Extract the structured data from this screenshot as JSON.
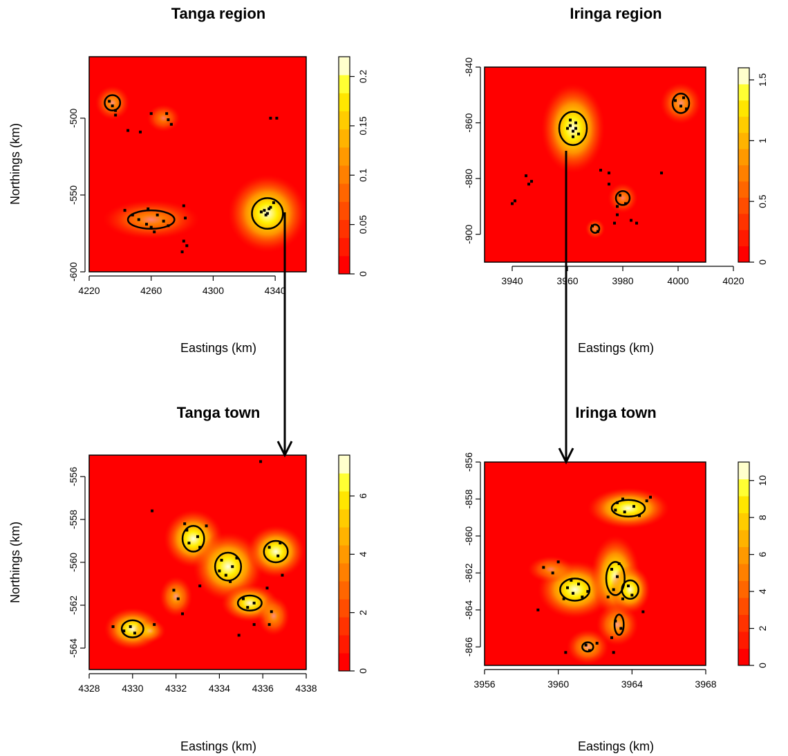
{
  "colors": {
    "low": "#ff0000",
    "mid": "#ffcc00",
    "high": "#ffffcc",
    "contour": "#000000",
    "event": "#000000"
  },
  "chart_data": [
    {
      "type": "heatmap",
      "title": "Tanga region",
      "xlabel": "Eastings (km)",
      "ylabel": "Northings (km)",
      "xlim": [
        4220,
        4360
      ],
      "ylim": [
        -600,
        -460
      ],
      "xticks": [
        4220,
        4260,
        4300,
        4340
      ],
      "yticks": [
        -600,
        -550,
        -500
      ],
      "colorbar": {
        "range": [
          0,
          0.22
        ],
        "ticks": [
          0,
          0.05,
          0.1,
          0.15,
          0.2
        ]
      },
      "hotspots": [
        {
          "x": 4235,
          "y": -490,
          "rx": 6,
          "ry": 6,
          "intensity": 0.06
        },
        {
          "x": 4260,
          "y": -566,
          "rx": 17,
          "ry": 7,
          "intensity": 0.05
        },
        {
          "x": 4268,
          "y": -500,
          "rx": 6,
          "ry": 5,
          "intensity": 0.03
        },
        {
          "x": 4335,
          "y": -562,
          "rx": 11,
          "ry": 11,
          "intensity": 0.22
        }
      ],
      "contours": [
        {
          "x": 4235,
          "y": -490,
          "rx": 5,
          "ry": 5
        },
        {
          "x": 4260,
          "y": -566,
          "rx": 15,
          "ry": 6
        },
        {
          "x": 4335,
          "y": -562,
          "rx": 10,
          "ry": 10
        }
      ],
      "events": [
        [
          4233,
          -489
        ],
        [
          4235,
          -492
        ],
        [
          4237,
          -495
        ],
        [
          4237,
          -498
        ],
        [
          4245,
          -508
        ],
        [
          4253,
          -509
        ],
        [
          4260,
          -497
        ],
        [
          4270,
          -497
        ],
        [
          4271,
          -501
        ],
        [
          4273,
          -504
        ],
        [
          4243,
          -560
        ],
        [
          4248,
          -563
        ],
        [
          4252,
          -566
        ],
        [
          4257,
          -569
        ],
        [
          4260,
          -571
        ],
        [
          4262,
          -574
        ],
        [
          4258,
          -559
        ],
        [
          4264,
          -563
        ],
        [
          4268,
          -567
        ],
        [
          4271,
          -570
        ],
        [
          4281,
          -557
        ],
        [
          4282,
          -565
        ],
        [
          4281,
          -580
        ],
        [
          4283,
          -583
        ],
        [
          4280,
          -587
        ],
        [
          4333,
          -560
        ],
        [
          4335,
          -562
        ],
        [
          4336,
          -559
        ],
        [
          4334,
          -563
        ],
        [
          4337,
          -558
        ],
        [
          4331,
          -561
        ],
        [
          4339,
          -555
        ],
        [
          4337,
          -500
        ],
        [
          4341,
          -500
        ]
      ]
    },
    {
      "type": "heatmap",
      "title": "Iringa region",
      "xlabel": "Eastings (km)",
      "ylabel": "",
      "xlim": [
        3930,
        4010
      ],
      "ylim": [
        -910,
        -840
      ],
      "xticks": [
        3940,
        3960,
        3980,
        4000,
        4020
      ],
      "yticks": [
        -900,
        -880,
        -860,
        -840
      ],
      "colorbar": {
        "range": [
          0,
          1.6
        ],
        "ticks": [
          0,
          0.5,
          1,
          1.5
        ]
      },
      "hotspots": [
        {
          "x": 3962,
          "y": -862,
          "rx": 5,
          "ry": 7,
          "intensity": 1.6
        },
        {
          "x": 4001,
          "y": -853,
          "rx": 4,
          "ry": 4,
          "intensity": 0.45
        },
        {
          "x": 3980,
          "y": -887,
          "rx": 3,
          "ry": 3,
          "intensity": 0.3
        },
        {
          "x": 3970,
          "y": -898,
          "rx": 2,
          "ry": 2,
          "intensity": 0.25
        }
      ],
      "contours": [
        {
          "x": 3962,
          "y": -862,
          "rx": 5,
          "ry": 6
        },
        {
          "x": 4001,
          "y": -853,
          "rx": 3,
          "ry": 3.5
        },
        {
          "x": 3980,
          "y": -887,
          "rx": 2.5,
          "ry": 2.5
        },
        {
          "x": 3970,
          "y": -898,
          "rx": 1.5,
          "ry": 1.5
        }
      ],
      "events": [
        [
          3961,
          -861
        ],
        [
          3962,
          -863
        ],
        [
          3963,
          -860
        ],
        [
          3960,
          -862
        ],
        [
          3964,
          -864
        ],
        [
          3962,
          -865
        ],
        [
          3961,
          -859
        ],
        [
          3963,
          -862
        ],
        [
          3999,
          -852
        ],
        [
          4001,
          -854
        ],
        [
          4002,
          -851
        ],
        [
          4003,
          -855
        ],
        [
          3940,
          -889
        ],
        [
          3941,
          -888
        ],
        [
          3945,
          -879
        ],
        [
          3946,
          -882
        ],
        [
          3947,
          -881
        ],
        [
          3972,
          -877
        ],
        [
          3975,
          -878
        ],
        [
          3975,
          -882
        ],
        [
          3978,
          -890
        ],
        [
          3978,
          -893
        ],
        [
          3977,
          -896
        ],
        [
          3979,
          -886
        ],
        [
          3981,
          -889
        ],
        [
          3969,
          -897
        ],
        [
          3971,
          -899
        ],
        [
          3983,
          -895
        ],
        [
          3994,
          -878
        ],
        [
          3985,
          -896
        ]
      ]
    },
    {
      "type": "heatmap",
      "title": "Tanga town",
      "xlabel": "Eastings (km)",
      "ylabel": "Northings (km)",
      "xlim": [
        4328,
        4338
      ],
      "ylim": [
        -565,
        -555
      ],
      "xticks": [
        4328,
        4330,
        4332,
        4334,
        4336,
        4338
      ],
      "yticks": [
        -564,
        -562,
        -560,
        -558,
        -556
      ],
      "colorbar": {
        "range": [
          0,
          7.4
        ],
        "ticks": [
          0,
          2,
          4,
          6
        ]
      },
      "hotspots": [
        {
          "x": 4332.8,
          "y": -558.9,
          "rx": 0.6,
          "ry": 0.6,
          "intensity": 7
        },
        {
          "x": 4334.4,
          "y": -560.2,
          "rx": 0.7,
          "ry": 0.7,
          "intensity": 7.4
        },
        {
          "x": 4336.6,
          "y": -559.5,
          "rx": 0.6,
          "ry": 0.55,
          "intensity": 6.5
        },
        {
          "x": 4335.4,
          "y": -561.9,
          "rx": 0.6,
          "ry": 0.4,
          "intensity": 6
        },
        {
          "x": 4330.0,
          "y": -563.1,
          "rx": 0.6,
          "ry": 0.45,
          "intensity": 6
        },
        {
          "x": 4332.0,
          "y": -561.6,
          "rx": 0.4,
          "ry": 0.5,
          "intensity": 2.5
        },
        {
          "x": 4336.5,
          "y": -562.5,
          "rx": 0.4,
          "ry": 0.5,
          "intensity": 2
        },
        {
          "x": 4330.8,
          "y": -563.2,
          "rx": 0.4,
          "ry": 0.3,
          "intensity": 1.5
        }
      ],
      "contours": [
        {
          "x": 4332.8,
          "y": -558.9,
          "rx": 0.5,
          "ry": 0.6
        },
        {
          "x": 4334.4,
          "y": -560.2,
          "rx": 0.6,
          "ry": 0.65
        },
        {
          "x": 4336.6,
          "y": -559.5,
          "rx": 0.55,
          "ry": 0.5
        },
        {
          "x": 4335.4,
          "y": -561.9,
          "rx": 0.55,
          "ry": 0.35
        },
        {
          "x": 4330.0,
          "y": -563.1,
          "rx": 0.5,
          "ry": 0.4
        }
      ],
      "events": [
        [
          4335.9,
          -555.3
        ],
        [
          4330.9,
          -557.6
        ],
        [
          4332.5,
          -558.5
        ],
        [
          4333.0,
          -558.8
        ],
        [
          4333.1,
          -559.3
        ],
        [
          4332.6,
          -559.1
        ],
        [
          4333.4,
          -558.3
        ],
        [
          4332.4,
          -558.2
        ],
        [
          4334.1,
          -559.9
        ],
        [
          4334.6,
          -560.2
        ],
        [
          4334.3,
          -560.6
        ],
        [
          4334.0,
          -560.4
        ],
        [
          4334.8,
          -559.8
        ],
        [
          4334.5,
          -560.9
        ],
        [
          4336.3,
          -559.3
        ],
        [
          4336.7,
          -559.7
        ],
        [
          4336.8,
          -559.1
        ],
        [
          4336.9,
          -560.6
        ],
        [
          4335.1,
          -561.7
        ],
        [
          4335.6,
          -561.9
        ],
        [
          4335.3,
          -562.1
        ],
        [
          4336.2,
          -561.2
        ],
        [
          4336.4,
          -562.3
        ],
        [
          4336.3,
          -562.9
        ],
        [
          4331.9,
          -561.3
        ],
        [
          4332.1,
          -561.7
        ],
        [
          4332.3,
          -562.4
        ],
        [
          4333.1,
          -561.1
        ],
        [
          4329.9,
          -563.0
        ],
        [
          4330.1,
          -563.3
        ],
        [
          4329.6,
          -563.2
        ],
        [
          4329.1,
          -563.0
        ],
        [
          4331.0,
          -562.9
        ],
        [
          4334.9,
          -563.4
        ],
        [
          4335.6,
          -562.9
        ]
      ]
    },
    {
      "type": "heatmap",
      "title": "Iringa town",
      "xlabel": "Eastings (km)",
      "ylabel": "",
      "xlim": [
        3956,
        3968
      ],
      "ylim": [
        -867,
        -856
      ],
      "xticks": [
        3956,
        3960,
        3964,
        3968
      ],
      "yticks": [
        -866,
        -864,
        -862,
        -860,
        -858,
        -856
      ],
      "colorbar": {
        "range": [
          0,
          11
        ],
        "ticks": [
          0,
          2,
          4,
          6,
          8,
          10
        ]
      },
      "hotspots": [
        {
          "x": 3963.8,
          "y": -858.5,
          "rx": 1.0,
          "ry": 0.5,
          "intensity": 9.5
        },
        {
          "x": 3960.9,
          "y": -862.9,
          "rx": 0.9,
          "ry": 0.7,
          "intensity": 10
        },
        {
          "x": 3963.1,
          "y": -862.2,
          "rx": 0.6,
          "ry": 1.0,
          "intensity": 10
        },
        {
          "x": 3963.9,
          "y": -862.9,
          "rx": 0.5,
          "ry": 0.6,
          "intensity": 9
        },
        {
          "x": 3963.2,
          "y": -864.8,
          "rx": 0.6,
          "ry": 0.6,
          "intensity": 4
        },
        {
          "x": 3961.6,
          "y": -866.0,
          "rx": 0.6,
          "ry": 0.5,
          "intensity": 4
        },
        {
          "x": 3959.6,
          "y": -861.8,
          "rx": 0.7,
          "ry": 0.4,
          "intensity": 2
        }
      ],
      "contours": [
        {
          "x": 3963.8,
          "y": -858.5,
          "rx": 0.9,
          "ry": 0.45
        },
        {
          "x": 3960.9,
          "y": -862.9,
          "rx": 0.8,
          "ry": 0.6
        },
        {
          "x": 3963.1,
          "y": -862.3,
          "rx": 0.5,
          "ry": 0.9
        },
        {
          "x": 3963.9,
          "y": -862.9,
          "rx": 0.45,
          "ry": 0.5
        },
        {
          "x": 3963.3,
          "y": -864.8,
          "rx": 0.25,
          "ry": 0.55
        },
        {
          "x": 3961.6,
          "y": -866.0,
          "rx": 0.3,
          "ry": 0.25
        }
      ],
      "events": [
        [
          3963.2,
          -858.2
        ],
        [
          3963.6,
          -858.7
        ],
        [
          3964.1,
          -858.4
        ],
        [
          3964.4,
          -858.9
        ],
        [
          3963.1,
          -858.6
        ],
        [
          3964.8,
          -858.1
        ],
        [
          3963.5,
          -858.0
        ],
        [
          3965.0,
          -857.9
        ],
        [
          3960.5,
          -862.8
        ],
        [
          3960.8,
          -863.1
        ],
        [
          3961.1,
          -862.6
        ],
        [
          3961.3,
          -863.3
        ],
        [
          3960.3,
          -863.4
        ],
        [
          3960.7,
          -862.4
        ],
        [
          3961.6,
          -863.0
        ],
        [
          3962.9,
          -861.8
        ],
        [
          3963.2,
          -862.2
        ],
        [
          3963.0,
          -862.9
        ],
        [
          3963.5,
          -863.4
        ],
        [
          3963.8,
          -862.7
        ],
        [
          3964.0,
          -863.2
        ],
        [
          3963.3,
          -861.5
        ],
        [
          3962.7,
          -863.3
        ],
        [
          3963.1,
          -864.6
        ],
        [
          3963.4,
          -865.0
        ],
        [
          3962.9,
          -865.5
        ],
        [
          3961.5,
          -865.9
        ],
        [
          3961.7,
          -866.2
        ],
        [
          3960.4,
          -866.3
        ],
        [
          3962.1,
          -865.8
        ],
        [
          3959.2,
          -861.7
        ],
        [
          3959.7,
          -862.0
        ],
        [
          3960.0,
          -861.4
        ],
        [
          3958.9,
          -864.0
        ],
        [
          3963.0,
          -866.3
        ],
        [
          3964.6,
          -864.1
        ]
      ]
    }
  ],
  "arrows": [
    {
      "from_panel": 0,
      "to_panel": 2
    },
    {
      "from_panel": 1,
      "to_panel": 3
    }
  ]
}
